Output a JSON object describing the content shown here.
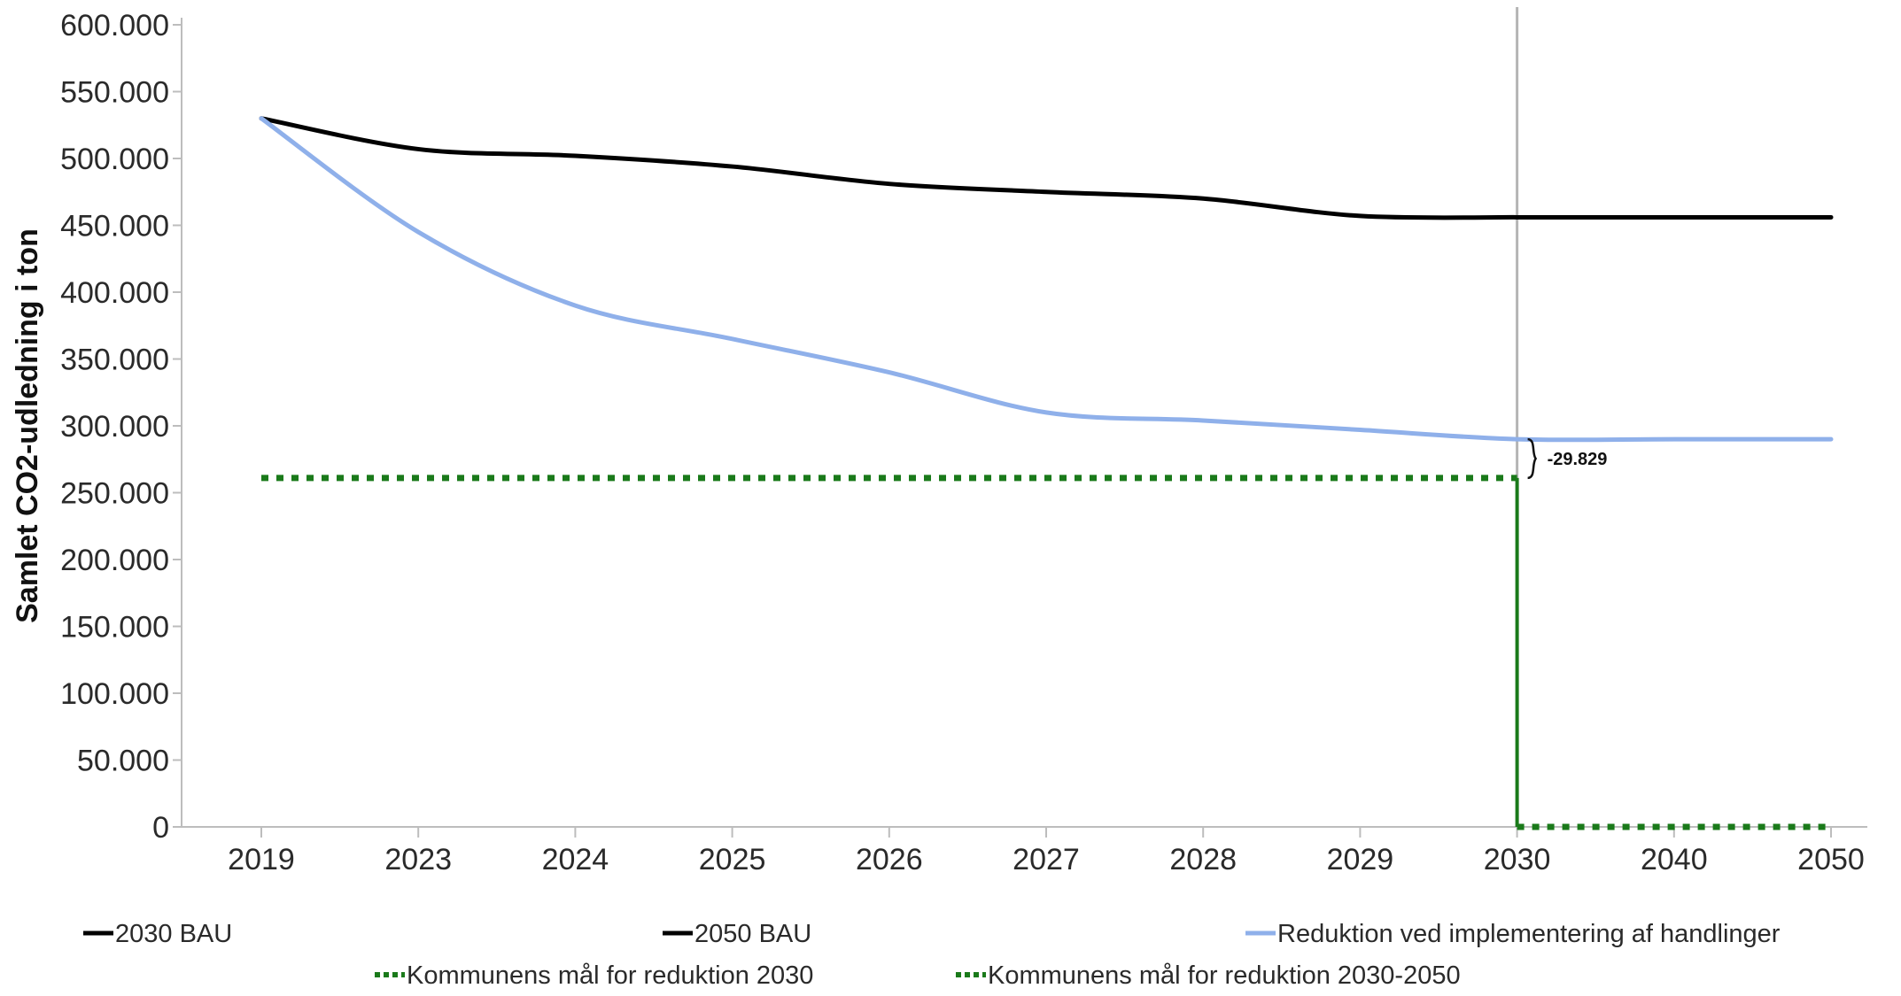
{
  "chart_data": {
    "type": "line",
    "ylabel": "Samlet CO2-udledning i ton",
    "xlabel": "",
    "categories": [
      "2019",
      "2023",
      "2024",
      "2025",
      "2026",
      "2027",
      "2028",
      "2029",
      "2030",
      "2040",
      "2050"
    ],
    "y_ticks": [
      "0",
      "50.000",
      "100.000",
      "150.000",
      "200.000",
      "250.000",
      "300.000",
      "350.000",
      "400.000",
      "450.000",
      "500.000",
      "550.000",
      "600.000"
    ],
    "ylim": [
      0,
      600000
    ],
    "grid": false,
    "series": [
      {
        "name": "2030 BAU",
        "color": "#000000",
        "style": "solid",
        "values": [
          530000,
          507000,
          502000,
          494000,
          481000,
          475000,
          470000,
          457000,
          456000,
          null,
          null
        ]
      },
      {
        "name": "2050 BAU",
        "color": "#000000",
        "style": "solid",
        "values": [
          null,
          null,
          null,
          null,
          null,
          null,
          null,
          null,
          456000,
          456000,
          456000
        ]
      },
      {
        "name": "Reduktion ved implementering af handlinger",
        "color": "#8fb0ea",
        "style": "solid",
        "values": [
          530000,
          445000,
          390000,
          365000,
          340000,
          310000,
          304000,
          297000,
          290000,
          290000,
          290000
        ]
      },
      {
        "name": "Kommunens mål for reduktion 2030",
        "color": "#1a7a1a",
        "style": "dotted",
        "values": [
          261000,
          261000,
          261000,
          261000,
          261000,
          261000,
          261000,
          261000,
          261000,
          null,
          null
        ]
      },
      {
        "name": "Kommunens mål for reduktion 2030-2050",
        "color": "#1a7a1a",
        "style": "dotted",
        "values": [
          null,
          null,
          null,
          null,
          null,
          null,
          null,
          null,
          0,
          0,
          0
        ]
      }
    ],
    "reference_line": {
      "x": "2030",
      "color": "#b5b5b5"
    },
    "target_drop_line": {
      "x": "2030",
      "from": 261000,
      "to": 0,
      "color": "#1a7a1a"
    },
    "annotations": [
      {
        "text": "-29.829",
        "x": "2030",
        "y_from": 290000,
        "y_to": 261000
      }
    ],
    "legend_position": "bottom"
  }
}
